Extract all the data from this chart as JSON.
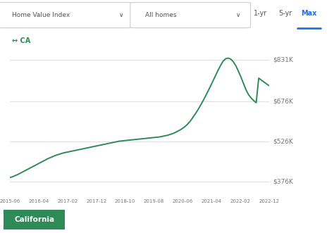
{
  "x_labels": [
    "2015-06",
    "2016-04",
    "2017-02",
    "2017-12",
    "2018-10",
    "2019-08",
    "2020-06",
    "2021-04",
    "2022-02",
    "2022-12"
  ],
  "line_color": "#2e8b57",
  "background_color": "#ffffff",
  "plot_bg_color": "#ffffff",
  "ytick_labels": [
    "$376K",
    "$526K",
    "$676K",
    "$831K"
  ],
  "ytick_values": [
    376000,
    526000,
    676000,
    831000
  ],
  "ylim": [
    335000,
    880000
  ],
  "grid_color": "#e0e0e0",
  "ca_label": "CA",
  "ca_label_color": "#2e8b57",
  "legend_text": "California",
  "legend_bg": "#2e8b57",
  "legend_text_color": "#ffffff",
  "header_bg": "#f5f5f5",
  "header_text_color": "#555555",
  "dropdown1": "Home Value Index",
  "dropdown2": "All homes",
  "tab_options": [
    "1-yr",
    "5-yr",
    "Max"
  ],
  "active_tab": "Max",
  "active_tab_color": "#1a73e8",
  "ca_data": [
    390000,
    393000,
    397000,
    401000,
    406000,
    411000,
    416000,
    421000,
    426000,
    431000,
    436000,
    441000,
    446000,
    451000,
    456000,
    461000,
    465000,
    469000,
    473000,
    476000,
    479000,
    482000,
    484000,
    486000,
    488000,
    490000,
    492000,
    494000,
    496000,
    498000,
    500000,
    502000,
    504000,
    506000,
    508000,
    510000,
    512000,
    514000,
    516000,
    518000,
    520000,
    522000,
    524000,
    526000,
    527000,
    528000,
    529000,
    530000,
    531000,
    532000,
    533000,
    534000,
    535000,
    536000,
    537000,
    538000,
    539000,
    540000,
    541000,
    542000,
    544000,
    546000,
    548000,
    551000,
    554000,
    558000,
    563000,
    568000,
    574000,
    581000,
    590000,
    601000,
    614000,
    628000,
    643000,
    659000,
    676000,
    694000,
    713000,
    732000,
    752000,
    772000,
    792000,
    810000,
    826000,
    835000,
    837000,
    833000,
    823000,
    808000,
    788000,
    766000,
    742000,
    718000,
    700000,
    688000,
    678000,
    670000,
    762000,
    755000,
    748000,
    741000,
    734000
  ]
}
